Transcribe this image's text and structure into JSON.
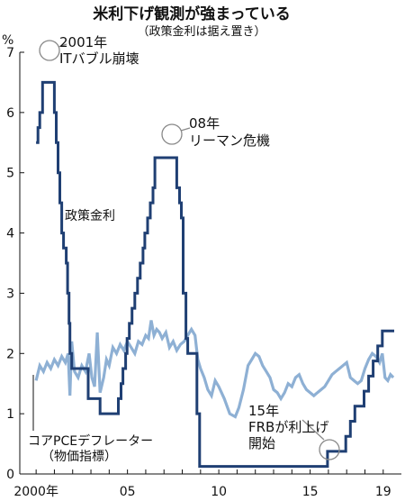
{
  "chart_data": {
    "type": "line",
    "title": "米利下げ観測が強まっている",
    "subtitle": "（政策金利は据え置き）",
    "ylabel": "%",
    "ylim": [
      0,
      7
    ],
    "y_ticks": [
      "0",
      "1",
      "2",
      "3",
      "4",
      "5",
      "6",
      "7"
    ],
    "xlim": [
      1999.5,
      2019.7
    ],
    "x_ticks": [
      {
        "x": 2000,
        "label": "2000年"
      },
      {
        "x": 2005,
        "label": "05"
      },
      {
        "x": 2010,
        "label": "10"
      },
      {
        "x": 2015,
        "label": "15"
      },
      {
        "x": 2019,
        "label": "19"
      }
    ],
    "colors": {
      "policy_rate": "#1f3f73",
      "pce_deflator": "#8eb0d4",
      "text": "#111111",
      "circle": "#888888"
    },
    "series": [
      {
        "key": "policy_rate",
        "name": "政策金利",
        "step": true,
        "points": [
          [
            2000.0,
            5.5
          ],
          [
            2000.1,
            5.75
          ],
          [
            2000.2,
            6.0
          ],
          [
            2000.35,
            6.5
          ],
          [
            2001.0,
            6.0
          ],
          [
            2001.1,
            5.5
          ],
          [
            2001.2,
            5.0
          ],
          [
            2001.3,
            4.5
          ],
          [
            2001.4,
            4.0
          ],
          [
            2001.5,
            3.75
          ],
          [
            2001.65,
            3.5
          ],
          [
            2001.72,
            3.0
          ],
          [
            2001.8,
            2.5
          ],
          [
            2001.85,
            2.0
          ],
          [
            2001.95,
            1.75
          ],
          [
            2002.85,
            1.25
          ],
          [
            2003.5,
            1.0
          ],
          [
            2004.5,
            1.25
          ],
          [
            2004.65,
            1.5
          ],
          [
            2004.75,
            1.75
          ],
          [
            2004.9,
            2.0
          ],
          [
            2004.98,
            2.25
          ],
          [
            2005.1,
            2.5
          ],
          [
            2005.25,
            2.75
          ],
          [
            2005.4,
            3.0
          ],
          [
            2005.55,
            3.25
          ],
          [
            2005.7,
            3.5
          ],
          [
            2005.85,
            3.75
          ],
          [
            2005.95,
            4.0
          ],
          [
            2006.1,
            4.25
          ],
          [
            2006.25,
            4.5
          ],
          [
            2006.4,
            4.75
          ],
          [
            2006.5,
            5.25
          ],
          [
            2007.7,
            4.75
          ],
          [
            2007.85,
            4.5
          ],
          [
            2007.95,
            4.25
          ],
          [
            2008.05,
            3.0
          ],
          [
            2008.2,
            2.25
          ],
          [
            2008.3,
            2.0
          ],
          [
            2008.8,
            1.0
          ],
          [
            2008.95,
            0.125
          ],
          [
            2015.95,
            0.375
          ],
          [
            2016.95,
            0.625
          ],
          [
            2017.2,
            0.875
          ],
          [
            2017.45,
            1.125
          ],
          [
            2017.95,
            1.375
          ],
          [
            2018.2,
            1.625
          ],
          [
            2018.45,
            1.875
          ],
          [
            2018.7,
            2.125
          ],
          [
            2018.95,
            2.375
          ],
          [
            2019.6,
            2.375
          ]
        ]
      },
      {
        "key": "pce_deflator",
        "name": "コアPCEデフレーター（物価指標）",
        "step": false,
        "points": [
          [
            2000.0,
            1.55
          ],
          [
            2000.2,
            1.8
          ],
          [
            2000.4,
            1.7
          ],
          [
            2000.6,
            1.85
          ],
          [
            2000.8,
            1.75
          ],
          [
            2001.0,
            1.9
          ],
          [
            2001.2,
            1.8
          ],
          [
            2001.4,
            1.95
          ],
          [
            2001.6,
            1.85
          ],
          [
            2001.75,
            2.0
          ],
          [
            2001.85,
            1.3
          ],
          [
            2001.95,
            2.2
          ],
          [
            2002.1,
            1.7
          ],
          [
            2002.3,
            1.6
          ],
          [
            2002.5,
            1.8
          ],
          [
            2002.7,
            1.7
          ],
          [
            2002.9,
            2.0
          ],
          [
            2003.05,
            1.6
          ],
          [
            2003.2,
            1.45
          ],
          [
            2003.35,
            2.35
          ],
          [
            2003.5,
            1.35
          ],
          [
            2003.7,
            1.6
          ],
          [
            2003.85,
            1.9
          ],
          [
            2004.0,
            1.8
          ],
          [
            2004.2,
            2.1
          ],
          [
            2004.4,
            2.0
          ],
          [
            2004.6,
            2.15
          ],
          [
            2004.8,
            2.05
          ],
          [
            2005.0,
            2.2
          ],
          [
            2005.2,
            2.1
          ],
          [
            2005.4,
            2.0
          ],
          [
            2005.6,
            2.2
          ],
          [
            2005.8,
            2.15
          ],
          [
            2006.0,
            2.3
          ],
          [
            2006.15,
            2.25
          ],
          [
            2006.3,
            2.55
          ],
          [
            2006.45,
            2.3
          ],
          [
            2006.6,
            2.4
          ],
          [
            2006.75,
            2.35
          ],
          [
            2006.9,
            2.25
          ],
          [
            2007.1,
            2.35
          ],
          [
            2007.3,
            2.1
          ],
          [
            2007.5,
            2.2
          ],
          [
            2007.7,
            2.05
          ],
          [
            2007.9,
            2.15
          ],
          [
            2008.1,
            2.2
          ],
          [
            2008.3,
            2.3
          ],
          [
            2008.5,
            2.4
          ],
          [
            2008.7,
            2.3
          ],
          [
            2008.85,
            1.9
          ],
          [
            2009.0,
            1.75
          ],
          [
            2009.2,
            1.6
          ],
          [
            2009.4,
            1.4
          ],
          [
            2009.6,
            1.3
          ],
          [
            2009.8,
            1.55
          ],
          [
            2010.0,
            1.45
          ],
          [
            2010.3,
            1.25
          ],
          [
            2010.6,
            1.0
          ],
          [
            2010.9,
            0.95
          ],
          [
            2011.1,
            1.1
          ],
          [
            2011.35,
            1.4
          ],
          [
            2011.6,
            1.8
          ],
          [
            2011.8,
            1.9
          ],
          [
            2012.0,
            2.0
          ],
          [
            2012.2,
            1.95
          ],
          [
            2012.4,
            1.8
          ],
          [
            2012.6,
            1.7
          ],
          [
            2012.8,
            1.6
          ],
          [
            2013.0,
            1.4
          ],
          [
            2013.2,
            1.35
          ],
          [
            2013.4,
            1.25
          ],
          [
            2013.6,
            1.35
          ],
          [
            2013.8,
            1.5
          ],
          [
            2014.0,
            1.45
          ],
          [
            2014.2,
            1.6
          ],
          [
            2014.4,
            1.65
          ],
          [
            2014.6,
            1.5
          ],
          [
            2014.8,
            1.4
          ],
          [
            2015.0,
            1.35
          ],
          [
            2015.2,
            1.3
          ],
          [
            2015.4,
            1.35
          ],
          [
            2015.6,
            1.4
          ],
          [
            2015.8,
            1.45
          ],
          [
            2016.0,
            1.55
          ],
          [
            2016.2,
            1.65
          ],
          [
            2016.4,
            1.7
          ],
          [
            2016.6,
            1.75
          ],
          [
            2016.8,
            1.8
          ],
          [
            2017.0,
            1.85
          ],
          [
            2017.2,
            1.6
          ],
          [
            2017.4,
            1.55
          ],
          [
            2017.6,
            1.5
          ],
          [
            2017.8,
            1.55
          ],
          [
            2018.0,
            1.75
          ],
          [
            2018.2,
            1.9
          ],
          [
            2018.4,
            2.0
          ],
          [
            2018.6,
            1.95
          ],
          [
            2018.8,
            1.85
          ],
          [
            2018.95,
            2.0
          ],
          [
            2019.1,
            1.6
          ],
          [
            2019.25,
            1.55
          ],
          [
            2019.4,
            1.65
          ],
          [
            2019.55,
            1.6
          ]
        ]
      }
    ],
    "annotations": [
      {
        "key": "dotcom",
        "at": [
          2000.35,
          6.5
        ],
        "lines": [
          "2001年",
          "ITバブル崩壊"
        ]
      },
      {
        "key": "lehman",
        "at": [
          2007.5,
          5.25
        ],
        "lines": [
          "08年",
          "リーマン危機"
        ]
      },
      {
        "key": "hike",
        "at": [
          2015.95,
          0.375
        ],
        "lines": [
          "15年",
          "FRBが利上げ",
          "開始"
        ]
      }
    ],
    "series_labels": [
      {
        "key": "policy_rate",
        "lines": [
          "政策金利"
        ]
      },
      {
        "key": "pce_deflator",
        "lines": [
          "コアPCEデフレーター",
          "（物価指標）"
        ]
      }
    ]
  }
}
